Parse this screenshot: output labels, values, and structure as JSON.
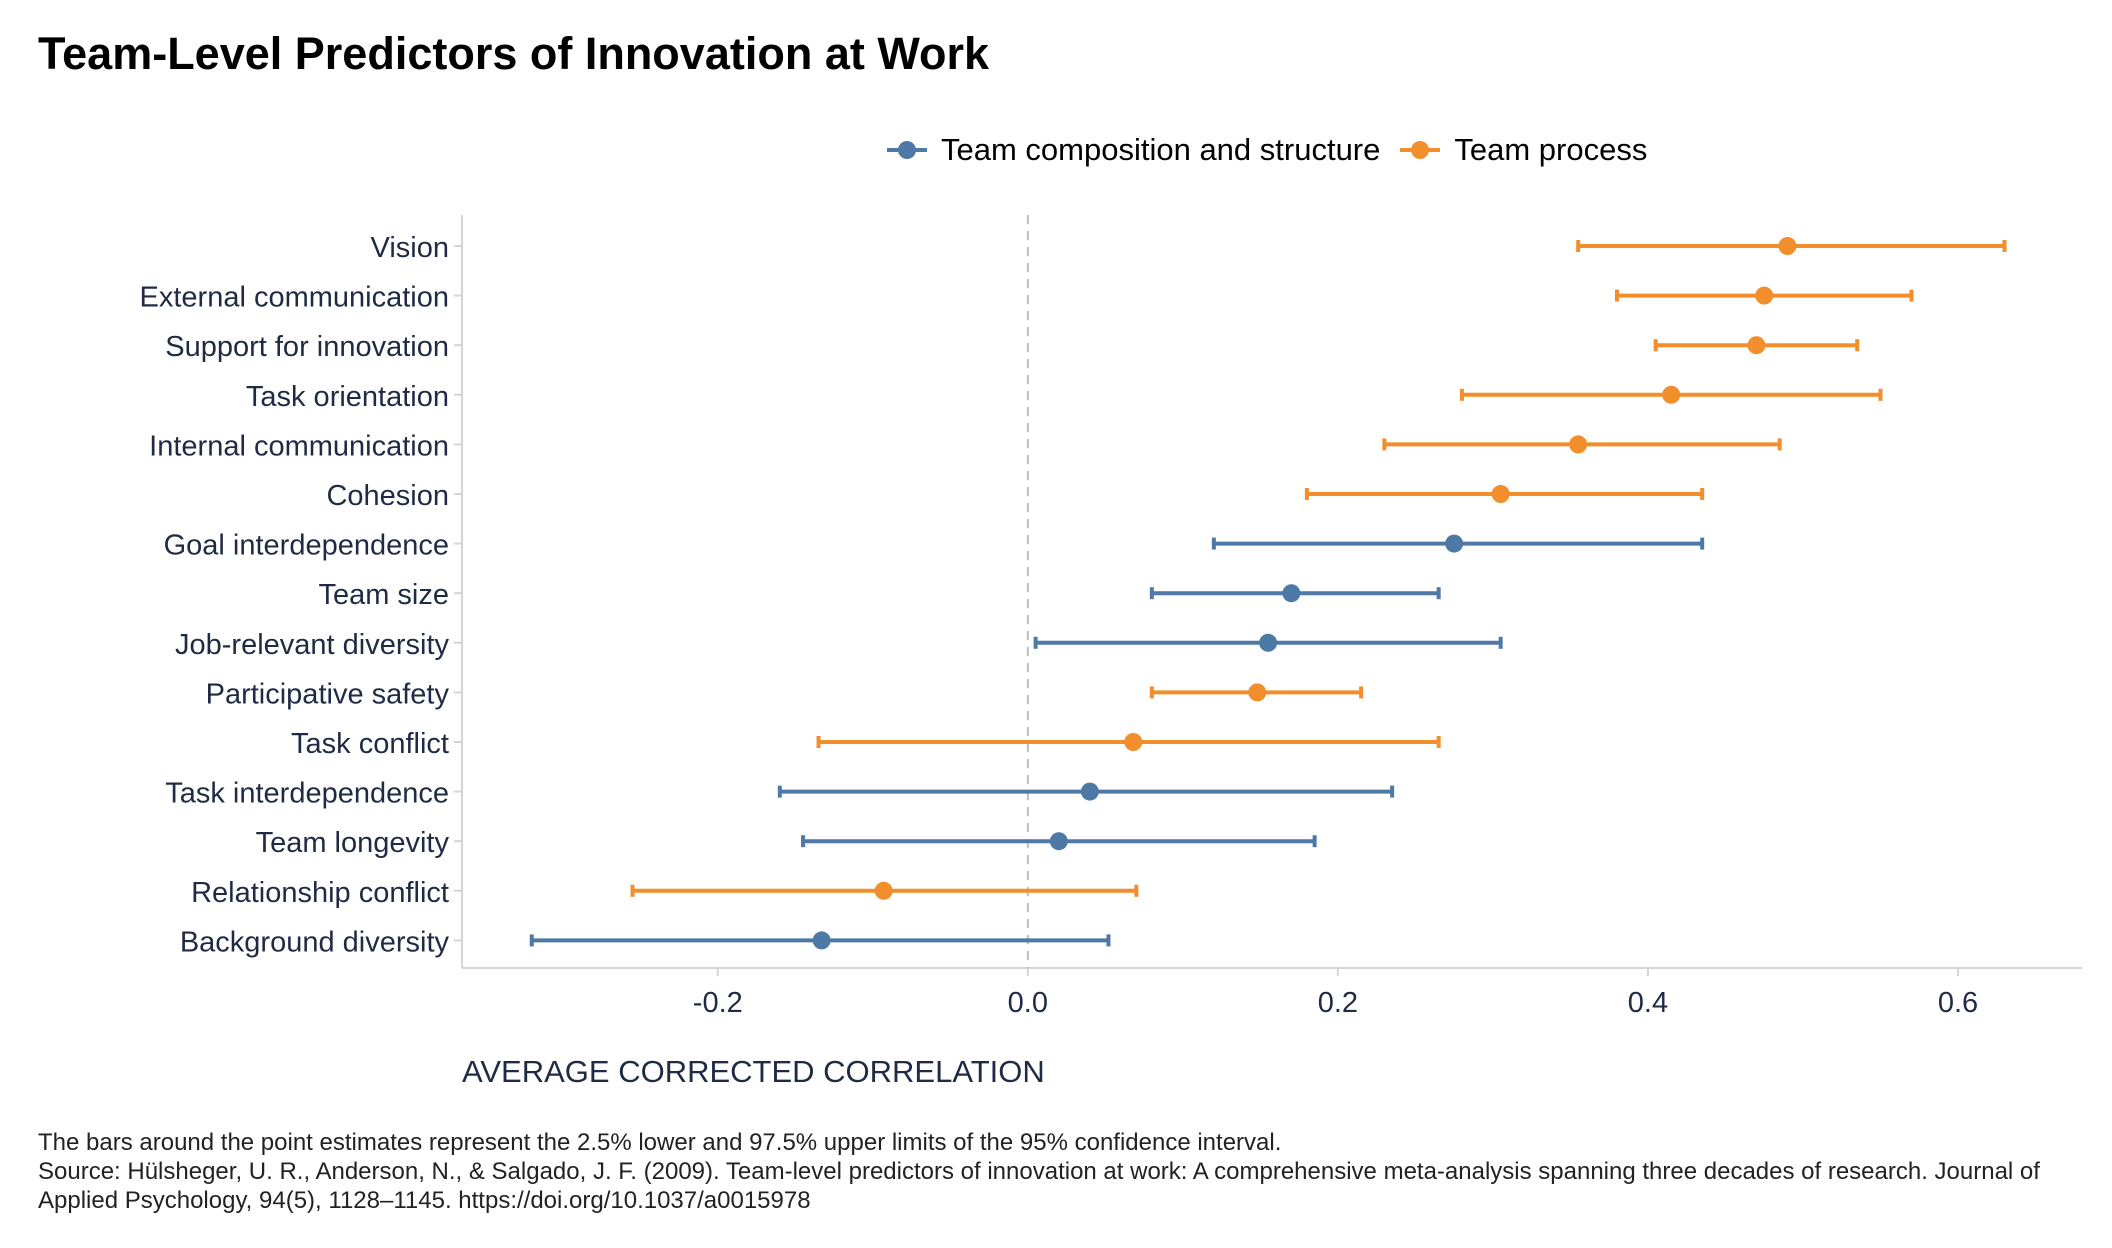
{
  "chart_data": {
    "type": "scatter",
    "title": "Team-Level Predictors of Innovation at Work",
    "xlabel": "AVERAGE CORRECTED CORRELATION",
    "ylabel": "",
    "xlim": [
      -0.365,
      0.68
    ],
    "xticks": [
      -0.2,
      0.0,
      0.2,
      0.4,
      0.6
    ],
    "xtick_labels": [
      "-0.2",
      "0.0",
      "0.2",
      "0.4",
      "0.6"
    ],
    "reference_line": 0.0,
    "grid": false,
    "legend_position": "top",
    "colors": {
      "Team composition and structure": "#4e79a7",
      "Team process": "#f28e2b"
    },
    "series": [
      {
        "name": "Team composition and structure"
      },
      {
        "name": "Team process"
      }
    ],
    "categories": [
      "Vision",
      "External communication",
      "Support for innovation",
      "Task orientation",
      "Internal communication",
      "Cohesion",
      "Goal interdependence",
      "Team size",
      "Job-relevant diversity",
      "Participative safety",
      "Task conflict",
      "Task interdependence",
      "Team longevity",
      "Relationship conflict",
      "Background diversity"
    ],
    "points": [
      {
        "label": "Vision",
        "series": "Team process",
        "estimate": 0.49,
        "lower": 0.355,
        "upper": 0.63
      },
      {
        "label": "External communication",
        "series": "Team process",
        "estimate": 0.475,
        "lower": 0.38,
        "upper": 0.57
      },
      {
        "label": "Support for innovation",
        "series": "Team process",
        "estimate": 0.47,
        "lower": 0.405,
        "upper": 0.535
      },
      {
        "label": "Task orientation",
        "series": "Team process",
        "estimate": 0.415,
        "lower": 0.28,
        "upper": 0.55
      },
      {
        "label": "Internal communication",
        "series": "Team process",
        "estimate": 0.355,
        "lower": 0.23,
        "upper": 0.485
      },
      {
        "label": "Cohesion",
        "series": "Team process",
        "estimate": 0.305,
        "lower": 0.18,
        "upper": 0.435
      },
      {
        "label": "Goal interdependence",
        "series": "Team composition and structure",
        "estimate": 0.275,
        "lower": 0.12,
        "upper": 0.435
      },
      {
        "label": "Team size",
        "series": "Team composition and structure",
        "estimate": 0.17,
        "lower": 0.08,
        "upper": 0.265
      },
      {
        "label": "Job-relevant diversity",
        "series": "Team composition and structure",
        "estimate": 0.155,
        "lower": 0.005,
        "upper": 0.305
      },
      {
        "label": "Participative safety",
        "series": "Team process",
        "estimate": 0.148,
        "lower": 0.08,
        "upper": 0.215
      },
      {
        "label": "Task conflict",
        "series": "Team process",
        "estimate": 0.068,
        "lower": -0.135,
        "upper": 0.265
      },
      {
        "label": "Task interdependence",
        "series": "Team composition and structure",
        "estimate": 0.04,
        "lower": -0.16,
        "upper": 0.235
      },
      {
        "label": "Team longevity",
        "series": "Team composition and structure",
        "estimate": 0.02,
        "lower": -0.145,
        "upper": 0.185
      },
      {
        "label": "Relationship conflict",
        "series": "Team process",
        "estimate": -0.093,
        "lower": -0.255,
        "upper": 0.07
      },
      {
        "label": "Background diversity",
        "series": "Team composition and structure",
        "estimate": -0.133,
        "lower": -0.32,
        "upper": 0.052
      }
    ]
  },
  "caption": {
    "note": "The bars around the point estimates represent the 2.5% lower and 97.5% upper limits of the 95% confidence interval.",
    "source": "Source: Hülsheger, U. R., Anderson, N., & Salgado, J. F. (2009). Team-level predictors of innovation at work: A comprehensive meta-analysis spanning three decades of research. Journal of Applied Psychology, 94(5), 1128–1145. https://doi.org/10.1037/a0015978"
  }
}
